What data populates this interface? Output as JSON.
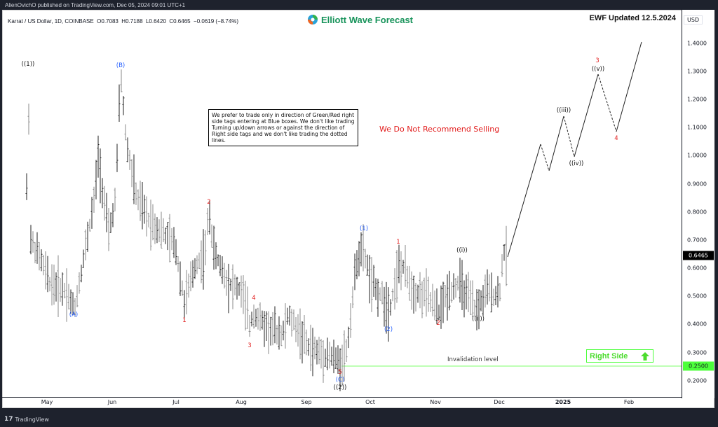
{
  "publish_bar": "AlienOvichO published on TradingView.com, Dec 05, 2024 09:01 UTC+1",
  "symbol": {
    "pair": "Karrat / US Dollar, 1D, COINBASE",
    "ohlc": "O0.7083  H0.7188  L0.6420  C0.6465  −0.0619 (−8.74%)"
  },
  "brand": {
    "name": "Elliott Wave Forecast",
    "color": "#17935a"
  },
  "ewf_updated": "EWF Updated 12.5.2024",
  "currency": "USD",
  "note_box": "We prefer to trade only in direction of Green/Red right side tags entering at Blue boxes. We don't like trading Turning up/down arrows or against the direction of Right side tags and we don't like trading the dotted lines.",
  "recommendation": "We Do Not Recommend Selling",
  "invalidation": {
    "label": "Invalidation level",
    "price": "0.2500",
    "color": "#4cff3b"
  },
  "right_side_tag": {
    "label": "Right Side",
    "direction": "up-arrow-icon",
    "color": "#4cdc2e"
  },
  "last_price_badge": "0.6465",
  "footer": "TradingView",
  "chart_data": {
    "type": "ohlc-bar",
    "title": "Karrat / US Dollar, 1D, COINBASE",
    "xlabel": "",
    "ylabel": "USD",
    "ylim": [
      0.17,
      1.45
    ],
    "y_ticks": [
      "1.4000",
      "1.3000",
      "1.2000",
      "1.1000",
      "1.0000",
      "0.9000",
      "0.8000",
      "0.7000",
      "0.6000",
      "0.5000",
      "0.4000",
      "0.3000",
      "0.2000"
    ],
    "x_ticks": [
      "May",
      "Jun",
      "Jul",
      "Aug",
      "Sep",
      "Oct",
      "Nov",
      "Dec",
      "2025",
      "Feb"
    ],
    "last": {
      "open": 0.7083,
      "high": 0.7188,
      "low": 0.642,
      "close": 0.6465,
      "change": -0.0619,
      "change_pct": -8.74
    },
    "price_path": [
      {
        "x": "late Apr",
        "price": 1.3
      },
      {
        "x": "mid May",
        "price": 0.45
      },
      {
        "x": "early Jun",
        "price": 1.3
      },
      {
        "x": "early Jul",
        "price": 0.44
      },
      {
        "x": "mid Jul",
        "price": 0.81
      },
      {
        "x": "early Aug",
        "price": 0.34
      },
      {
        "x": "early Aug",
        "price": 0.45
      },
      {
        "x": "mid Sep",
        "price": 0.255
      },
      {
        "x": "late Sep",
        "price": 0.72
      },
      {
        "x": "early Oct",
        "price": 0.4
      },
      {
        "x": "mid Oct",
        "price": 0.67
      },
      {
        "x": "late Oct",
        "price": 0.42
      },
      {
        "x": "mid Nov",
        "price": 0.64
      },
      {
        "x": "late Nov",
        "price": 0.44
      },
      {
        "x": "Dec 5",
        "price": 0.6465
      }
    ],
    "projection": [
      {
        "x": "Dec 5",
        "price": 0.64
      },
      {
        "x": "late Dec",
        "price": 1.04
      },
      {
        "x": "end Dec",
        "price": 0.95
      },
      {
        "x": "early Jan",
        "price": 1.14
      },
      {
        "x": "mid Jan",
        "price": 0.99
      },
      {
        "x": "late Jan",
        "price": 1.29
      },
      {
        "x": "early Feb",
        "price": 1.08
      },
      {
        "x": "mid Feb",
        "price": 1.4
      }
    ],
    "wave_labels": [
      {
        "text": "((1))",
        "color": "black",
        "price": 1.3
      },
      {
        "text": "(A)",
        "color": "blue",
        "price": 0.45
      },
      {
        "text": "(B)",
        "color": "blue",
        "price": 1.3
      },
      {
        "text": "1",
        "color": "red",
        "price": 0.44
      },
      {
        "text": "2",
        "color": "red",
        "price": 0.81
      },
      {
        "text": "3",
        "color": "red",
        "price": 0.34
      },
      {
        "text": "4",
        "color": "red",
        "price": 0.45
      },
      {
        "text": "5",
        "color": "red",
        "price": 0.255
      },
      {
        "text": "(C)",
        "color": "blue",
        "price": 0.255
      },
      {
        "text": "((2))",
        "color": "black",
        "price": 0.255
      },
      {
        "text": "(1)",
        "color": "blue",
        "price": 0.72
      },
      {
        "text": "(2)",
        "color": "blue",
        "price": 0.4
      },
      {
        "text": "1",
        "color": "red",
        "price": 0.67
      },
      {
        "text": "2",
        "color": "red",
        "price": 0.42
      },
      {
        "text": "((i))",
        "color": "black",
        "price": 0.64
      },
      {
        "text": "((ii))",
        "color": "black",
        "price": 0.44
      },
      {
        "text": "((iii))",
        "color": "black",
        "price": 1.14
      },
      {
        "text": "((iv))",
        "color": "black",
        "price": 0.99
      },
      {
        "text": "((v))",
        "color": "black",
        "price": 1.29
      },
      {
        "text": "3",
        "color": "red",
        "price": 1.29
      },
      {
        "text": "4",
        "color": "red",
        "price": 1.08
      }
    ],
    "grid": false,
    "legend": "none"
  },
  "labels": {
    "w1": "((1))",
    "wA": "(A)",
    "wB": "(B)",
    "r1a": "1",
    "r2a": "2",
    "r3a": "3",
    "r4a": "4",
    "r5a": "5",
    "wC": "(C)",
    "w2": "((2))",
    "b1": "(1)",
    "b2": "(2)",
    "r1b": "1",
    "r2b": "2",
    "wi": "((i))",
    "wii": "((ii))",
    "wiii": "((iii))",
    "wiv": "((iv))",
    "wv": "((v))",
    "r3b": "3",
    "r4b": "4"
  }
}
